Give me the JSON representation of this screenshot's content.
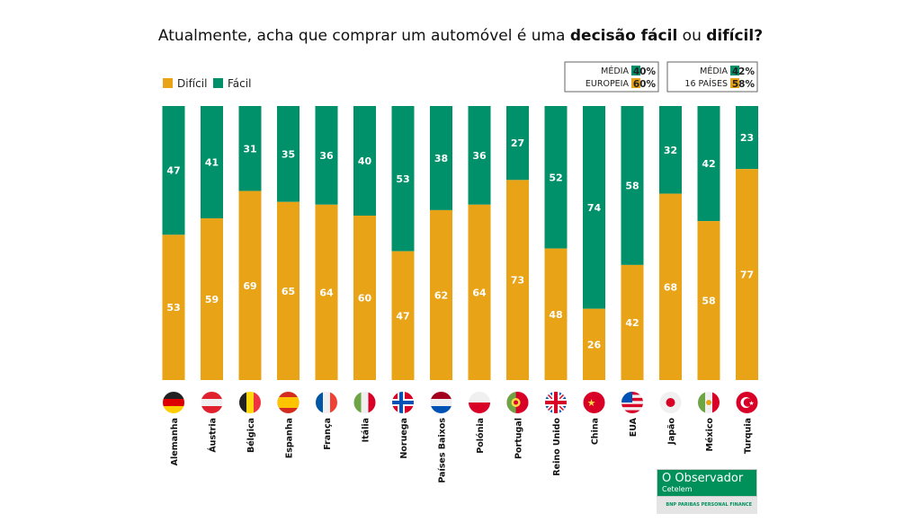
{
  "title": {
    "pre": "Atualmente, acha que comprar um automóvel é uma ",
    "bold1": "decisão fácil",
    "mid": " ou ",
    "bold2": "difícil?"
  },
  "colors": {
    "dificil": "#E8A317",
    "facil": "#00906A"
  },
  "summary_boxes": [
    {
      "label_lines": [
        "MÉDIA",
        "EUROPEIA"
      ],
      "facil": "40%",
      "dificil": "60%"
    },
    {
      "label_lines": [
        "MÉDIA",
        "16 PAÍSES"
      ],
      "facil": "42%",
      "dificil": "58%"
    }
  ],
  "logo": {
    "name": "O Observador",
    "sub": "Cetelem",
    "partner": "BNP PARIBAS PERSONAL FINANCE"
  },
  "chart_data": {
    "type": "bar",
    "stacked": true,
    "legend": {
      "placement": "top-left",
      "entries": [
        "Difícil",
        "Fácil"
      ]
    },
    "categories": [
      "Alemanha",
      "Áustria",
      "Bélgica",
      "Espanha",
      "França",
      "Itália",
      "Noruega",
      "Países Baixos",
      "Polónia",
      "Portugal",
      "Reino Unido",
      "China",
      "EUA",
      "Japão",
      "México",
      "Turquia"
    ],
    "flags": [
      "de",
      "at",
      "be",
      "es",
      "fr",
      "it",
      "no",
      "nl",
      "pl",
      "pt",
      "gb",
      "cn",
      "us",
      "jp",
      "mx",
      "tr"
    ],
    "series": [
      {
        "name": "Difícil",
        "values": [
          53,
          59,
          69,
          65,
          64,
          60,
          47,
          62,
          64,
          73,
          48,
          26,
          42,
          68,
          58,
          77
        ]
      },
      {
        "name": "Fácil",
        "values": [
          47,
          41,
          31,
          35,
          36,
          40,
          53,
          38,
          36,
          27,
          52,
          74,
          58,
          32,
          42,
          23
        ]
      }
    ],
    "ylim": [
      0,
      100
    ]
  }
}
